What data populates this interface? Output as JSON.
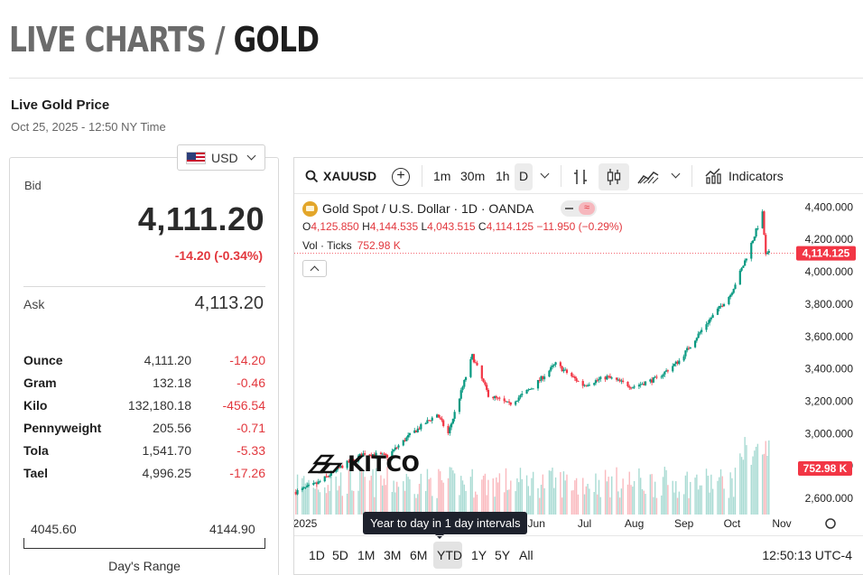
{
  "header": {
    "prefix": "LIVE CHARTS",
    "slash": "/",
    "metal": "GOLD"
  },
  "live": {
    "label": "Live Gold Price",
    "timestamp": "Oct 25, 2025 - 12:50 NY Time"
  },
  "currency": {
    "selected": "USD"
  },
  "quote": {
    "bid_label": "Bid",
    "bid": "4,111.20",
    "change": "-14.20 (-0.34%)",
    "ask_label": "Ask",
    "ask": "4,113.20"
  },
  "units": [
    {
      "unit": "Ounce",
      "price": "4,111.20",
      "change": "-14.20"
    },
    {
      "unit": "Gram",
      "price": "132.18",
      "change": "-0.46"
    },
    {
      "unit": "Kilo",
      "price": "132,180.18",
      "change": "-456.54"
    },
    {
      "unit": "Pennyweight",
      "price": "205.56",
      "change": "-0.71"
    },
    {
      "unit": "Tola",
      "price": "1,541.70",
      "change": "-5.33"
    },
    {
      "unit": "Tael",
      "price": "4,996.25",
      "change": "-17.26"
    }
  ],
  "day_range": {
    "low": "4045.60",
    "high": "4144.90",
    "label": "Day's Range"
  },
  "toolbar": {
    "symbol": "XAUUSD",
    "intervals": [
      "1m",
      "30m",
      "1h",
      "D"
    ],
    "active_interval": "D",
    "indicators": "Indicators"
  },
  "legend": {
    "title": "Gold Spot / U.S. Dollar · 1D · OANDA",
    "o_label": "O",
    "o": "4,125.850",
    "h_label": "H",
    "h": "4,144.535",
    "l_label": "L",
    "l": "4,043.515",
    "c_label": "C",
    "c": "4,114.125",
    "chg": "−11.950 (−0.29%)",
    "vol_label": "Vol · Ticks",
    "vol": "752.98 K"
  },
  "watermark": "KITCO",
  "tooltip": "Year to day in 1 day intervals",
  "ranges": [
    "1D",
    "5D",
    "1M",
    "3M",
    "6M",
    "YTD",
    "1Y",
    "5Y",
    "All"
  ],
  "active_range": "YTD",
  "clock": "12:50:13 UTC-4",
  "colors": {
    "up": "#089981",
    "down": "#f23645",
    "accent": "#e2373d"
  },
  "chart_data": {
    "type": "candlestick",
    "symbol": "XAUUSD",
    "x_tick_labels": [
      "2025",
      "Jun",
      "Jul",
      "Aug",
      "Sep",
      "Oct",
      "Nov"
    ],
    "y_tick_labels": [
      "2,600.000",
      "2,800.000",
      "3,000.000",
      "3,200.000",
      "3,400.000",
      "3,600.000",
      "3,800.000",
      "4,000.000",
      "4,200.000",
      "4,400.000"
    ],
    "ylim": [
      2500,
      4480
    ],
    "last_price_label": "4,114.125",
    "last_volume_label": "752.98 K",
    "series": [
      {
        "name": "XAUUSD",
        "close_path": [
          [
            "2025-01-02",
            2640
          ],
          [
            "2025-01-15",
            2690
          ],
          [
            "2025-01-31",
            2800
          ],
          [
            "2025-02-14",
            2880
          ],
          [
            "2025-02-28",
            2860
          ],
          [
            "2025-03-14",
            2990
          ],
          [
            "2025-03-31",
            3120
          ],
          [
            "2025-04-07",
            3000
          ],
          [
            "2025-04-22",
            3480
          ],
          [
            "2025-05-02",
            3240
          ],
          [
            "2025-05-15",
            3180
          ],
          [
            "2025-05-30",
            3290
          ],
          [
            "2025-06-13",
            3430
          ],
          [
            "2025-06-30",
            3300
          ],
          [
            "2025-07-15",
            3350
          ],
          [
            "2025-07-31",
            3290
          ],
          [
            "2025-08-15",
            3340
          ],
          [
            "2025-08-29",
            3450
          ],
          [
            "2025-09-15",
            3680
          ],
          [
            "2025-09-30",
            3860
          ],
          [
            "2025-10-08",
            4040
          ],
          [
            "2025-10-20",
            4360
          ],
          [
            "2025-10-22",
            4100
          ],
          [
            "2025-10-24",
            4114
          ]
        ]
      }
    ]
  }
}
